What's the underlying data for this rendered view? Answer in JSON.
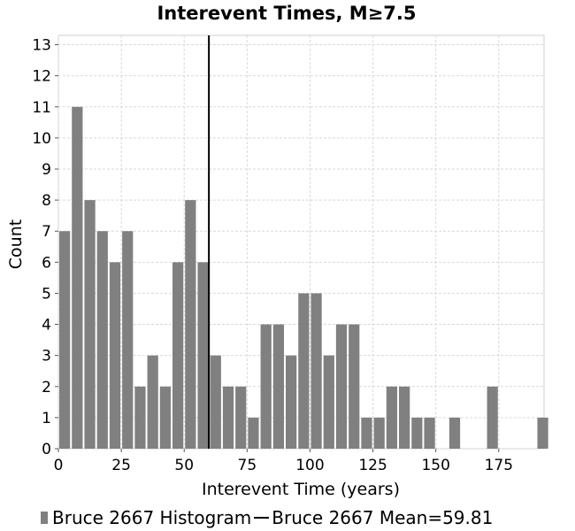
{
  "chart_data": {
    "type": "bar",
    "title": "Interevent Times, M≥7.5",
    "xlabel": "Interevent Time (years)",
    "ylabel": "Count",
    "xlim": [
      0,
      193
    ],
    "ylim": [
      0,
      13.3
    ],
    "bin_width": 5,
    "x_ticks": [
      "0",
      "25",
      "50",
      "75",
      "100",
      "125",
      "150",
      "175"
    ],
    "y_ticks": [
      "0",
      "1",
      "2",
      "3",
      "4",
      "5",
      "6",
      "7",
      "8",
      "9",
      "10",
      "11",
      "12",
      "13"
    ],
    "bins_start": [
      0,
      5,
      10,
      15,
      20,
      25,
      30,
      35,
      40,
      45,
      50,
      55,
      60,
      65,
      70,
      75,
      80,
      85,
      90,
      95,
      100,
      105,
      110,
      115,
      120,
      125,
      130,
      135,
      140,
      145,
      150,
      155,
      160,
      165,
      170,
      175,
      180,
      185,
      190
    ],
    "values": [
      7,
      11,
      8,
      7,
      6,
      7,
      2,
      3,
      2,
      6,
      8,
      6,
      3,
      2,
      2,
      1,
      4,
      4,
      3,
      5,
      5,
      3,
      4,
      4,
      1,
      1,
      2,
      2,
      1,
      1,
      0,
      1,
      0,
      0,
      2,
      0,
      0,
      0,
      1
    ],
    "mean": 59.81,
    "grid": true,
    "bar_color": "#808080",
    "mean_line_color": "#000000",
    "legend_position": "bottom",
    "series": [
      {
        "name": "Bruce 2667 Histogram",
        "kind": "bar"
      },
      {
        "name": "Bruce 2667 Mean=59.81",
        "kind": "line"
      }
    ]
  }
}
